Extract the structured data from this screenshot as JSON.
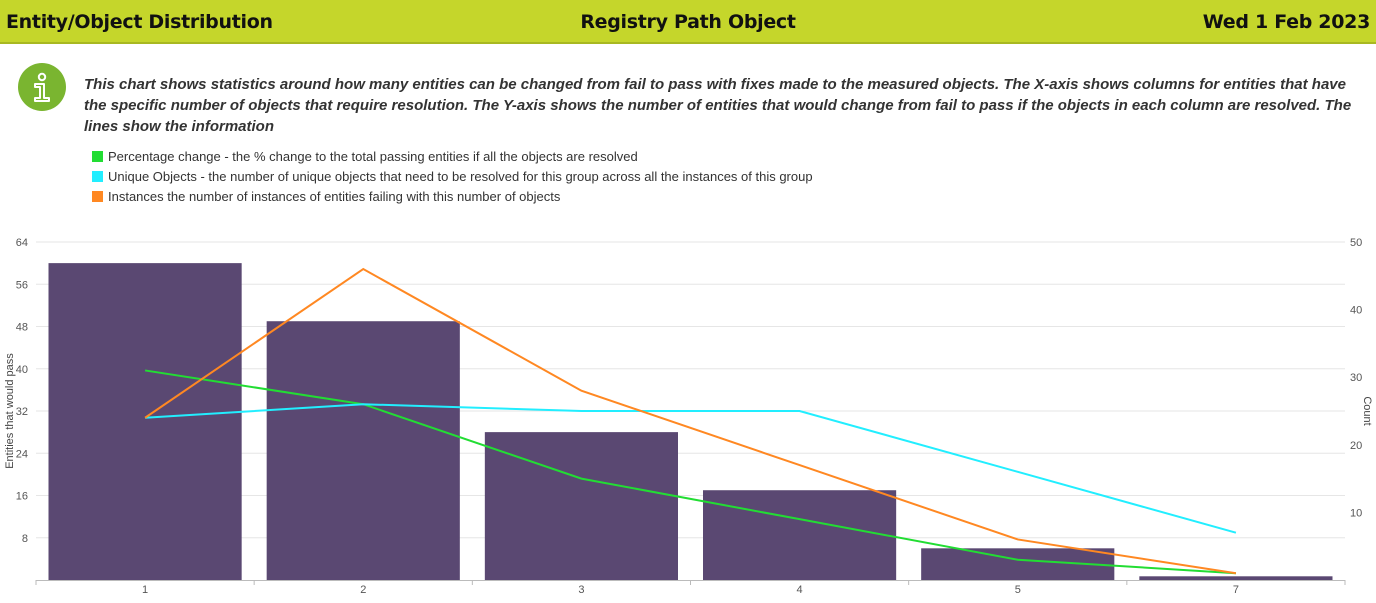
{
  "header": {
    "left_title": "Entity/Object Distribution",
    "center_title": "Registry Path Object",
    "date": "Wed 1 Feb 2023"
  },
  "description": "This chart shows statistics around how many entities can be changed from fail to pass with fixes made to the measured objects. The X-axis shows columns for entities that have the specific number of objects that require resolution. The Y-axis shows the number of entities that would change from fail to pass if the objects in each column are resolved. The lines show the information",
  "legend": [
    {
      "label": "Percentage change - the % change to the total passing entities if all the objects are resolved",
      "color": "#22dd33"
    },
    {
      "label": "Unique Objects - the number of unique objects that need to be resolved for this group across all the instances of this group",
      "color": "#22eeff"
    },
    {
      "label": "Instances the number of instances of entities failing with this number of objects",
      "color": "#ff8822"
    }
  ],
  "chart_data": {
    "type": "bar",
    "categories": [
      "1",
      "2",
      "3",
      "4",
      "5",
      "7"
    ],
    "series": [
      {
        "name": "Entities that would pass",
        "type": "bar",
        "axis": "left",
        "color": "#5a4872",
        "values": [
          60,
          49,
          28,
          17,
          6,
          0.7
        ]
      },
      {
        "name": "Percentage change",
        "type": "line",
        "axis": "right",
        "color": "#22dd33",
        "values": [
          31,
          26,
          15,
          9,
          3,
          1
        ]
      },
      {
        "name": "Unique Objects",
        "type": "line",
        "axis": "right",
        "color": "#22eeff",
        "values": [
          24,
          26,
          25,
          25,
          16,
          7
        ]
      },
      {
        "name": "Instances",
        "type": "line",
        "axis": "right",
        "color": "#ff8822",
        "values": [
          24,
          46,
          28,
          17,
          6,
          1
        ]
      }
    ],
    "ylabel": "Entities that would pass",
    "y2label": "Count",
    "ylim": [
      0,
      64
    ],
    "yticks": [
      "8",
      "16",
      "24",
      "32",
      "40",
      "48",
      "56",
      "64"
    ],
    "y2lim": [
      0,
      50
    ],
    "y2ticks": [
      "10",
      "20",
      "30",
      "40",
      "50"
    ],
    "grid": true
  }
}
